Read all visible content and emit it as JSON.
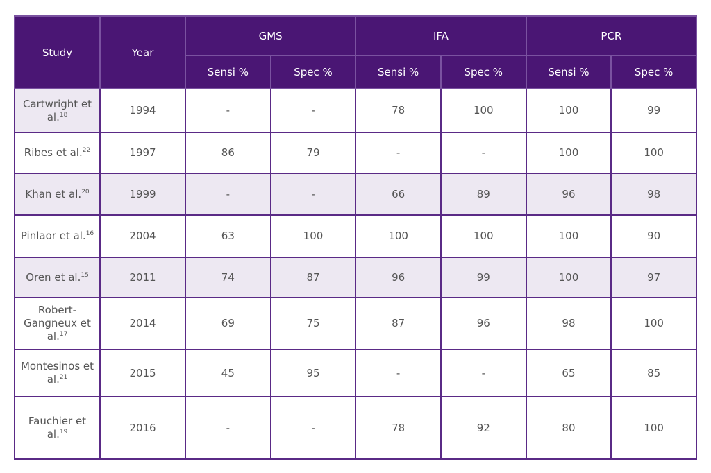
{
  "table": {
    "header": {
      "study": "Study",
      "year": "Year",
      "groups": [
        "GMS",
        "IFA",
        "PCR"
      ],
      "subheaders": [
        "Sensi %",
        "Spec %",
        "Sensi %",
        "Spec %",
        "Sensi %",
        "Spec %"
      ]
    },
    "rows": [
      {
        "study": "Cartwright et al.",
        "ref": "18",
        "year": "1994",
        "values": [
          "-",
          "-",
          "78",
          "100",
          "100",
          "99"
        ]
      },
      {
        "study": "Ribes et al.",
        "ref": "22",
        "year": "1997",
        "values": [
          "86",
          "79",
          "-",
          "-",
          "100",
          "100"
        ]
      },
      {
        "study": "Khan et al.",
        "ref": "20",
        "year": "1999",
        "values": [
          "-",
          "-",
          "66",
          "89",
          "96",
          "98"
        ]
      },
      {
        "study": "Pinlaor et al.",
        "ref": "16",
        "year": "2004",
        "values": [
          "63",
          "100",
          "100",
          "100",
          "100",
          "90"
        ]
      },
      {
        "study": "Oren et al.",
        "ref": "15",
        "year": "2011",
        "values": [
          "74",
          "87",
          "96",
          "99",
          "100",
          "97"
        ]
      },
      {
        "study": "Robert-Gangneux et al.",
        "ref": "17",
        "year": "2014",
        "values": [
          "69",
          "75",
          "87",
          "96",
          "98",
          "100"
        ]
      },
      {
        "study": "Montesinos et al.",
        "ref": "21",
        "year": "2015",
        "values": [
          "45",
          "95",
          "-",
          "-",
          "65",
          "85"
        ]
      },
      {
        "study": "Fauchier et al.",
        "ref": "19",
        "year": "2016",
        "values": [
          "-",
          "-",
          "78",
          "92",
          "80",
          "100"
        ]
      }
    ]
  }
}
